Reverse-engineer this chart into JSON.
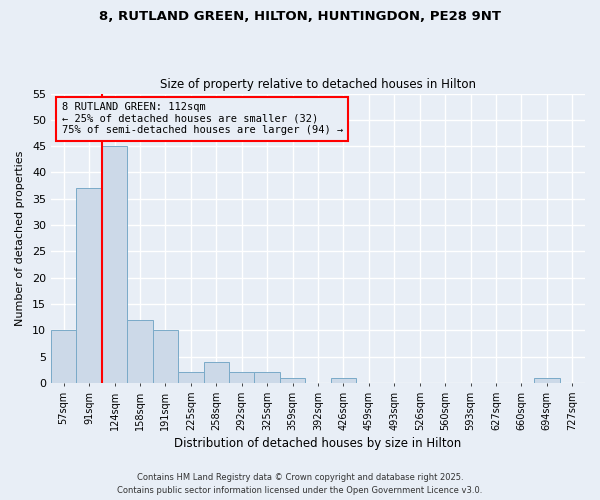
{
  "title_line1": "8, RUTLAND GREEN, HILTON, HUNTINGDON, PE28 9NT",
  "title_line2": "Size of property relative to detached houses in Hilton",
  "xlabel": "Distribution of detached houses by size in Hilton",
  "ylabel": "Number of detached properties",
  "bar_labels": [
    "57sqm",
    "91sqm",
    "124sqm",
    "158sqm",
    "191sqm",
    "225sqm",
    "258sqm",
    "292sqm",
    "325sqm",
    "359sqm",
    "392sqm",
    "426sqm",
    "459sqm",
    "493sqm",
    "526sqm",
    "560sqm",
    "593sqm",
    "627sqm",
    "660sqm",
    "694sqm",
    "727sqm"
  ],
  "bar_values": [
    10,
    37,
    45,
    12,
    10,
    2,
    4,
    2,
    2,
    1,
    0,
    1,
    0,
    0,
    0,
    0,
    0,
    0,
    0,
    1,
    0
  ],
  "bar_color": "#ccd9e8",
  "bar_edge_color": "#7aaac8",
  "annotation_text_line1": "8 RUTLAND GREEN: 112sqm",
  "annotation_text_line2": "← 25% of detached houses are smaller (32)",
  "annotation_text_line3": "75% of semi-detached houses are larger (94) →",
  "ylim": [
    0,
    55
  ],
  "yticks": [
    0,
    5,
    10,
    15,
    20,
    25,
    30,
    35,
    40,
    45,
    50,
    55
  ],
  "background_color": "#e8eef6",
  "grid_color": "#ffffff",
  "footer_line1": "Contains HM Land Registry data © Crown copyright and database right 2025.",
  "footer_line2": "Contains public sector information licensed under the Open Government Licence v3.0."
}
